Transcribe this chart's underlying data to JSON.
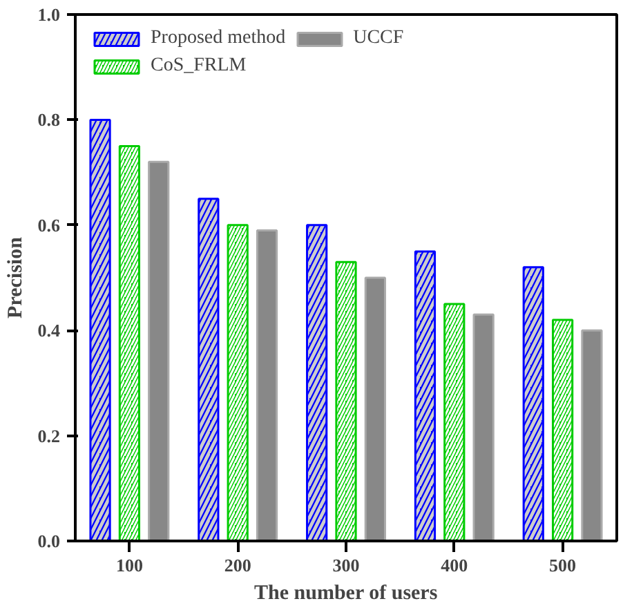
{
  "chart_data": {
    "type": "bar",
    "xlabel": "The number of users",
    "ylabel": "Precision",
    "categories": [
      "100",
      "200",
      "300",
      "400",
      "500"
    ],
    "series": [
      {
        "name": "Proposed method",
        "color": "#0000ff",
        "values": [
          0.8,
          0.65,
          0.6,
          0.55,
          0.52
        ]
      },
      {
        "name": "CoS_FRLM",
        "color": "#00cc00",
        "values": [
          0.75,
          0.6,
          0.53,
          0.45,
          0.42
        ]
      },
      {
        "name": "UCCF",
        "color": "#888888",
        "values": [
          0.72,
          0.59,
          0.5,
          0.43,
          0.4
        ]
      }
    ],
    "ylim": [
      0,
      1.0
    ],
    "yticks": [
      {
        "value": 0,
        "label": "0.0"
      },
      0.2,
      0.4,
      0.6,
      0.8,
      {
        "value": 1.0,
        "label": "1.0"
      }
    ],
    "grid": false,
    "legend": "top left"
  }
}
